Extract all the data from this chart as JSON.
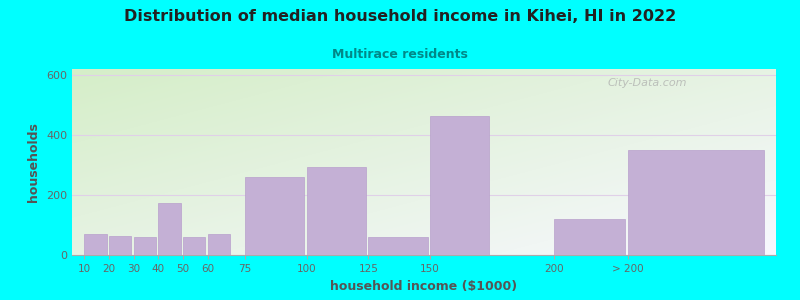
{
  "title": "Distribution of median household income in Kihei, HI in 2022",
  "subtitle": "Multirace residents",
  "xlabel": "household income ($1000)",
  "ylabel": "households",
  "background_color": "#00FFFF",
  "bar_color": "#c4b0d5",
  "bar_edge_color": "#b8a0cc",
  "grid_color": "#e0d0e8",
  "title_color": "#222222",
  "subtitle_color": "#008888",
  "axis_label_color": "#555555",
  "tick_label_color": "#666666",
  "watermark": "City-Data.com",
  "cats_pos": [
    10,
    20,
    30,
    40,
    50,
    60,
    75,
    100,
    125,
    150,
    200,
    230
  ],
  "cats_width": [
    9,
    9,
    9,
    9,
    9,
    9,
    24,
    24,
    24,
    24,
    29,
    55
  ],
  "cats_vals": [
    70,
    65,
    60,
    175,
    60,
    70,
    260,
    295,
    60,
    465,
    120,
    350
  ],
  "ylim": [
    0,
    620
  ],
  "yticks": [
    0,
    200,
    400,
    600
  ],
  "xtick_pos": [
    10,
    20,
    30,
    40,
    50,
    60,
    75,
    100,
    125,
    150,
    200,
    230
  ],
  "xtick_lab": [
    "10",
    "20",
    "30",
    "40",
    "50",
    "60",
    "75",
    "100",
    "125",
    "150",
    "200",
    "> 200"
  ],
  "plot_bg_topleft": "#d8f0cc",
  "plot_bg_botright": "#f8f8ff"
}
